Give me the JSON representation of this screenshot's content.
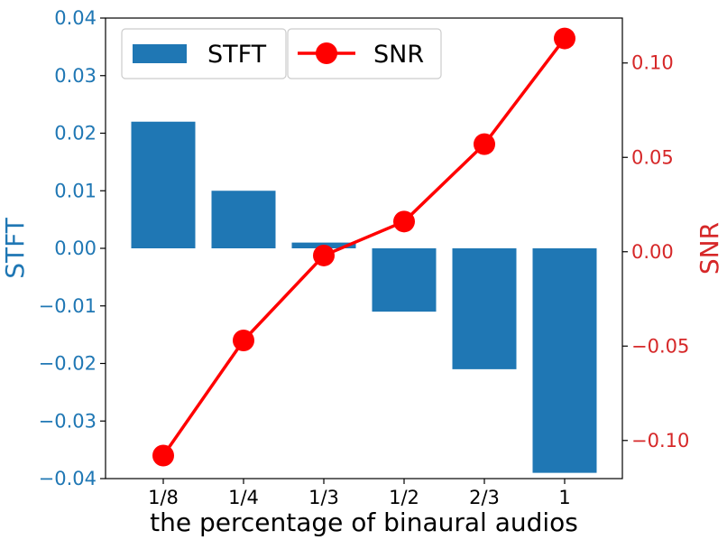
{
  "chart_data": {
    "type": "bar",
    "categories": [
      "1/8",
      "1/4",
      "1/3",
      "1/2",
      "2/3",
      "1"
    ],
    "xlabel": "the percentage of binaural audios",
    "series": [
      {
        "name": "STFT",
        "type": "bar",
        "axis": "left",
        "color": "#1f77b4",
        "values": [
          0.022,
          0.01,
          0.001,
          -0.011,
          -0.021,
          -0.039
        ]
      },
      {
        "name": "SNR",
        "type": "line",
        "axis": "right",
        "color": "#ff0000",
        "marker": "circle",
        "values": [
          -0.108,
          -0.047,
          -0.002,
          0.016,
          0.057,
          0.113
        ]
      }
    ],
    "left_axis": {
      "label": "STFT",
      "color": "#1f77b4",
      "ylim": [
        -0.04,
        0.04
      ],
      "ticks": [
        -0.04,
        -0.03,
        -0.02,
        -0.01,
        0.0,
        0.01,
        0.02,
        0.03,
        0.04
      ],
      "tick_labels": [
        "−0.04",
        "−0.03",
        "−0.02",
        "−0.01",
        "0.00",
        "0.01",
        "0.02",
        "0.03",
        "0.04"
      ]
    },
    "right_axis": {
      "label": "SNR",
      "color": "#d62728",
      "ylim": [
        -0.1202,
        0.1238
      ],
      "ticks": [
        -0.1,
        -0.05,
        0.0,
        0.05,
        0.1
      ],
      "tick_labels": [
        "−0.10",
        "−0.05",
        "0.00",
        "0.05",
        "0.10"
      ]
    },
    "legend": {
      "placement": "top-left",
      "entries": [
        "STFT",
        "SNR"
      ]
    },
    "grid": false
  }
}
